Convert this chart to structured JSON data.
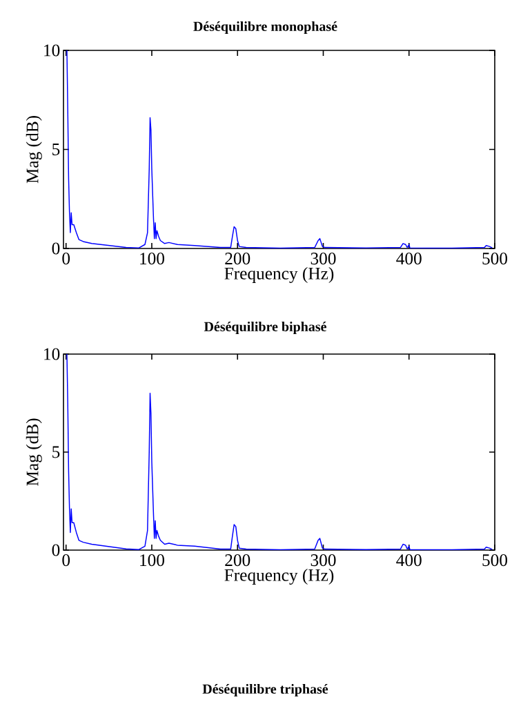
{
  "chart_data": [
    {
      "type": "line",
      "title": "Déséquilibre monophasé",
      "xlabel": "Frequency (Hz)",
      "ylabel": "Mag (dB)",
      "color": "#0000ff",
      "xlim": [
        -3,
        500
      ],
      "ylim": [
        0,
        10
      ],
      "xticks": [
        0,
        100,
        200,
        300,
        400,
        500
      ],
      "yticks": [
        0,
        5,
        10
      ],
      "x": [
        1,
        2,
        3,
        4,
        5,
        6,
        7,
        9,
        12,
        15,
        20,
        30,
        50,
        70,
        85,
        92,
        95,
        97,
        98,
        99,
        100,
        102,
        103,
        104,
        105,
        106,
        108,
        110,
        115,
        120,
        130,
        150,
        180,
        192,
        194,
        196,
        198,
        200,
        202,
        210,
        250,
        290,
        294,
        296,
        299,
        302,
        350,
        390,
        393,
        396,
        398,
        400,
        401,
        450,
        488,
        490,
        494,
        497
      ],
      "values": [
        10,
        7,
        3.5,
        1.8,
        0.8,
        1.8,
        1.2,
        1.2,
        0.8,
        0.45,
        0.35,
        0.25,
        0.15,
        0.05,
        0.03,
        0.2,
        0.8,
        4,
        6.6,
        6,
        4,
        1.5,
        0.5,
        1.3,
        0.5,
        0.9,
        0.6,
        0.4,
        0.25,
        0.3,
        0.2,
        0.15,
        0.05,
        0.05,
        0.6,
        1.1,
        1.0,
        0.4,
        0.1,
        0.05,
        0.02,
        0.05,
        0.4,
        0.5,
        0.1,
        0.05,
        0.03,
        0.05,
        0.25,
        0.2,
        0.05,
        0.2,
        0.03,
        0.02,
        0.05,
        0.15,
        0.1,
        0.03
      ]
    },
    {
      "type": "line",
      "title": "Déséquilibre biphasé",
      "xlabel": "Frequency (Hz)",
      "ylabel": "Mag (dB)",
      "color": "#0000ff",
      "xlim": [
        -3,
        500
      ],
      "ylim": [
        0,
        10
      ],
      "xticks": [
        0,
        100,
        200,
        300,
        400,
        500
      ],
      "yticks": [
        0,
        5,
        10
      ],
      "x": [
        1,
        2,
        3,
        4,
        5,
        6,
        7,
        9,
        12,
        15,
        20,
        30,
        50,
        70,
        85,
        92,
        95,
        97,
        98,
        99,
        100,
        102,
        103,
        104,
        105,
        106,
        108,
        110,
        115,
        120,
        130,
        150,
        180,
        192,
        194,
        196,
        198,
        200,
        202,
        210,
        250,
        290,
        294,
        296,
        299,
        302,
        350,
        390,
        393,
        396,
        398,
        400,
        401,
        450,
        488,
        490,
        494,
        497
      ],
      "values": [
        10,
        7.5,
        4,
        2.1,
        0.9,
        2.1,
        1.4,
        1.4,
        0.9,
        0.5,
        0.4,
        0.3,
        0.18,
        0.06,
        0.03,
        0.2,
        1.0,
        5,
        8,
        7,
        4.5,
        1.8,
        0.6,
        1.5,
        0.6,
        1.0,
        0.7,
        0.5,
        0.3,
        0.35,
        0.25,
        0.2,
        0.05,
        0.05,
        0.7,
        1.3,
        1.2,
        0.5,
        0.1,
        0.05,
        0.02,
        0.05,
        0.5,
        0.6,
        0.1,
        0.05,
        0.03,
        0.05,
        0.3,
        0.25,
        0.05,
        0.2,
        0.03,
        0.02,
        0.05,
        0.15,
        0.1,
        0.03
      ]
    },
    {
      "type": "other",
      "title": "Déséquilibre triphasé"
    }
  ]
}
